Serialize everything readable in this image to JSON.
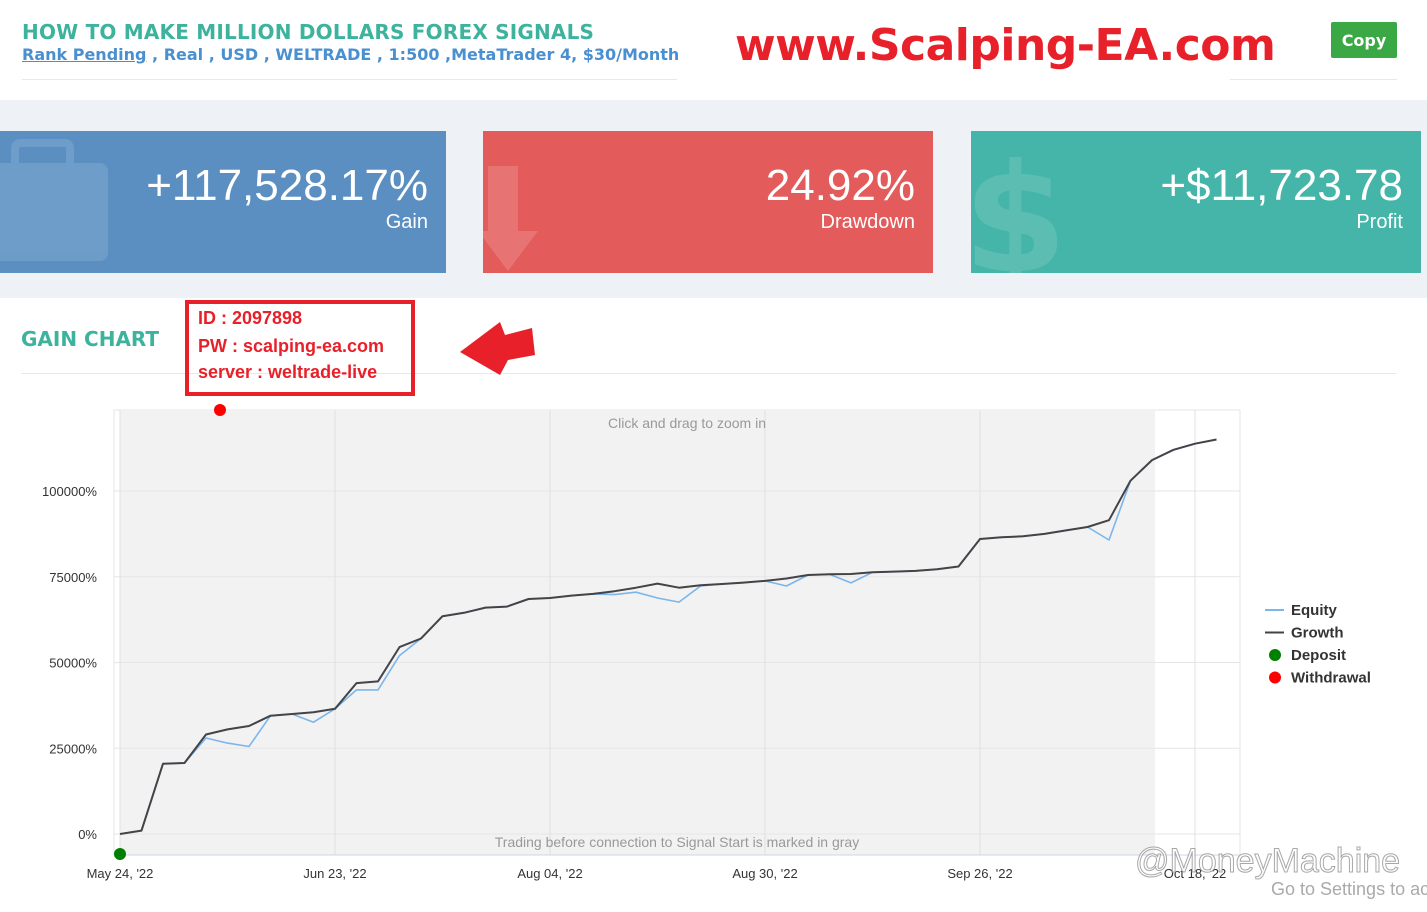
{
  "header": {
    "title": "HOW TO MAKE MILLION DOLLARS FOREX SIGNALS",
    "rank": "Rank Pending",
    "details": " , Real , USD , WELTRADE , 1:500 ,MetaTrader 4, $30/Month",
    "banner": "www.Scalping-EA.com",
    "button": "Copy"
  },
  "stats": [
    {
      "value": "+117,528.17%",
      "label": "Gain"
    },
    {
      "value": "24.92%",
      "label": "Drawdown"
    },
    {
      "value": "+$11,723.78",
      "label": "Profit"
    }
  ],
  "section_title": "GAIN CHART",
  "credentials": [
    "ID : 2097898",
    "PW : scalping-ea.com",
    "server : weltrade-live"
  ],
  "chart_data": {
    "type": "line",
    "annotations": [
      "Click and drag to zoom in",
      "Trading before connection to Signal Start is marked in gray"
    ],
    "categories": [
      "May 24, '22",
      null,
      null,
      null,
      null,
      null,
      null,
      null,
      null,
      null,
      "Jun 23, '22",
      null,
      null,
      null,
      null,
      null,
      null,
      null,
      null,
      null,
      "Aug 04, '22",
      null,
      null,
      null,
      null,
      null,
      null,
      null,
      null,
      null,
      "Aug 30, '22",
      null,
      null,
      null,
      null,
      null,
      null,
      null,
      null,
      null,
      "Sep 26, '22",
      null,
      null,
      null,
      null,
      null,
      null,
      null,
      null,
      null,
      "Oct 18, '22",
      null
    ],
    "series": [
      {
        "name": "Equity",
        "color": "#7cb5ec",
        "values": [
          0,
          1000,
          20500,
          20700,
          28000,
          26500,
          25500,
          34500,
          35000,
          32600,
          36500,
          42000,
          42000,
          52000,
          57000,
          63500,
          64500,
          66000,
          66300,
          68500,
          68800,
          69500,
          70000,
          69800,
          70500,
          68800,
          67600,
          72300,
          72900,
          73300,
          73800,
          72300,
          75500,
          75700,
          73200,
          76300,
          76500,
          76700,
          77200,
          78000,
          86000,
          86500,
          86800,
          87500,
          88500,
          89500,
          85700,
          103000,
          109000,
          112000,
          113800,
          115000
        ]
      },
      {
        "name": "Growth",
        "color": "#434348",
        "values": [
          0,
          1000,
          20500,
          20700,
          29000,
          30500,
          31500,
          34500,
          35000,
          35500,
          36500,
          44000,
          44500,
          54500,
          57000,
          63500,
          64500,
          66000,
          66300,
          68500,
          68800,
          69500,
          70000,
          70800,
          71800,
          73000,
          71800,
          72500,
          72900,
          73300,
          73800,
          74500,
          75500,
          75700,
          75800,
          76300,
          76500,
          76700,
          77200,
          78000,
          86000,
          86500,
          86800,
          87500,
          88500,
          89500,
          91500,
          103000,
          109000,
          112000,
          113800,
          115000
        ]
      }
    ],
    "events": [
      {
        "name": "Deposit",
        "color": "#008000"
      },
      {
        "name": "Withdrawal",
        "color": "#ff0000"
      }
    ],
    "ylim": [
      -6122,
      123615
    ],
    "yticks": [
      {
        "value": 0,
        "label": "0%"
      },
      {
        "value": 25000,
        "label": "25000%"
      },
      {
        "value": 50000,
        "label": "50000%"
      },
      {
        "value": 75000,
        "label": "75000%"
      },
      {
        "value": 100000,
        "label": "100000%"
      }
    ],
    "grid": true
  },
  "watermark": "@MoneyMachine",
  "os_notice": "Go to Settings to ac"
}
